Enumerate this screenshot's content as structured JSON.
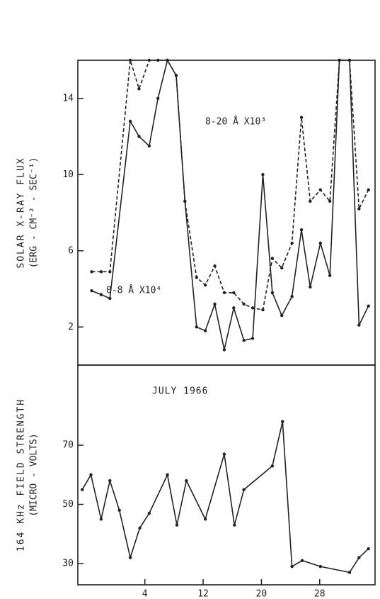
{
  "chart_data": [
    {
      "type": "line",
      "ylabel": "SOLAR X-RAY FLUX",
      "ylabel2": "(ERG - CM⁻² - SEC⁻¹)",
      "x": [
        -3.3,
        -2.0,
        -0.8,
        2.0,
        3.2,
        4.6,
        5.8,
        7.1,
        8.3,
        9.5,
        11.1,
        12.3,
        13.6,
        14.9,
        16.2,
        17.6,
        18.8,
        20.2,
        21.5,
        22.8,
        24.2,
        25.5,
        26.7,
        28.1,
        29.4,
        30.7,
        32.1,
        33.4,
        34.7
      ],
      "series": [
        {
          "name": "8-20 Å X10³",
          "color": "#222222",
          "dash": true,
          "values": [
            4.9,
            4.9,
            4.9,
            16,
            14.5,
            16,
            16,
            16,
            15.2,
            8.6,
            4.6,
            4.2,
            5.2,
            3.8,
            3.8,
            3.2,
            3.0,
            2.9,
            5.6,
            5.1,
            6.4,
            13,
            8.6,
            9.2,
            8.6,
            16,
            16,
            8.2,
            9.2
          ]
        },
        {
          "name": "0-8 Å X10⁴",
          "color": "#222222",
          "dash": false,
          "values": [
            3.9,
            3.7,
            3.5,
            12.8,
            12,
            11.5,
            14,
            16,
            15.2,
            8.6,
            2.0,
            1.8,
            3.2,
            0.8,
            3.0,
            1.3,
            1.4,
            10,
            3.8,
            2.6,
            3.6,
            7.1,
            4.1,
            6.4,
            4.7,
            16,
            16,
            2.1,
            3.1
          ]
        }
      ],
      "xlim": [
        -5.2,
        35.6
      ],
      "ylim": [
        0,
        16
      ],
      "yticks": [
        2,
        6,
        10,
        14
      ]
    },
    {
      "type": "line",
      "ylabel": "164 KHz FIELD STRENGTH",
      "ylabel2": "(MICRO - VOLTS)",
      "annotation": "JULY 1966",
      "x": [
        -4.6,
        -3.4,
        -2.0,
        -0.8,
        0.5,
        2.0,
        3.3,
        4.6,
        7.1,
        8.4,
        9.7,
        12.3,
        14.9,
        16.3,
        17.6,
        21.5,
        22.9,
        24.2,
        25.6,
        28.1,
        32.1,
        33.4,
        34.7
      ],
      "series": [
        {
          "color": "#222222",
          "dash": false,
          "values": [
            55,
            60,
            45,
            58,
            48,
            32,
            42,
            47,
            60,
            43,
            58,
            45,
            67,
            43,
            55,
            63,
            78,
            29,
            31,
            29,
            27,
            32,
            35
          ]
        }
      ],
      "xlim": [
        -5.2,
        35.6
      ],
      "ylim": [
        22.8,
        97.1
      ],
      "yticks": [
        30,
        50,
        70
      ],
      "xticks": [
        4,
        12,
        20,
        28
      ]
    }
  ]
}
